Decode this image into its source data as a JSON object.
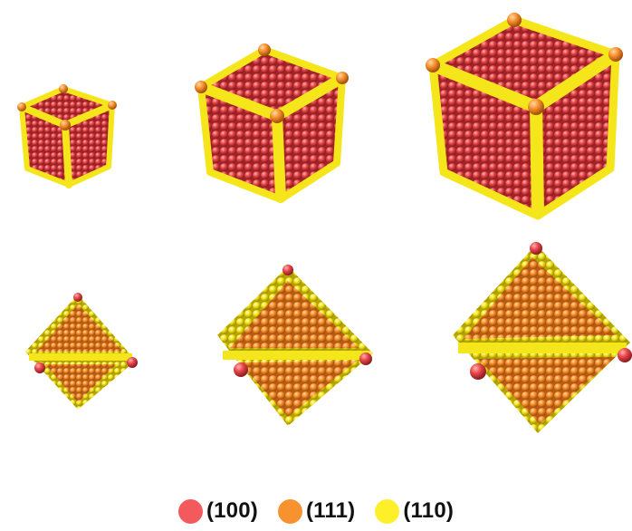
{
  "colors": {
    "facet_100": "#e8474b",
    "facet_111": "#f7922e",
    "facet_110": "#f5e61b"
  },
  "legend": [
    {
      "label": "(100)",
      "color": "#f25a5e"
    },
    {
      "label": "(111)",
      "color": "#f7922e"
    },
    {
      "label": "(110)",
      "color": "#fdf02a"
    }
  ],
  "cubes": [
    {
      "size": "small"
    },
    {
      "size": "medium"
    },
    {
      "size": "large"
    }
  ],
  "octahedra": [
    {
      "size": "small"
    },
    {
      "size": "medium"
    },
    {
      "size": "large"
    }
  ]
}
